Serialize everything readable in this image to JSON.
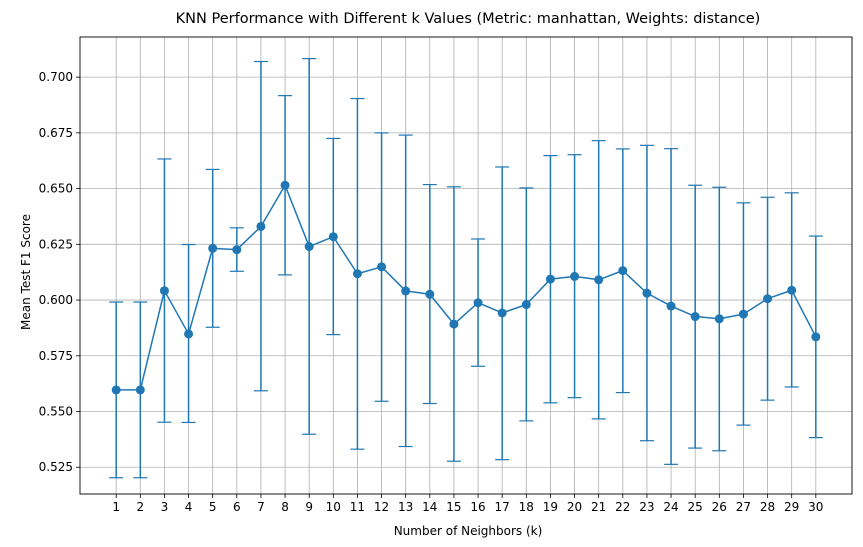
{
  "chart_data": {
    "type": "line",
    "title": "KNN Performance with Different k Values (Metric: manhattan, Weights: distance)",
    "xlabel": "Number of Neighbors (k)",
    "ylabel": "Mean Test F1 Score",
    "x": [
      1,
      2,
      3,
      4,
      5,
      6,
      7,
      8,
      9,
      10,
      11,
      12,
      13,
      14,
      15,
      16,
      17,
      18,
      19,
      20,
      21,
      22,
      23,
      24,
      25,
      26,
      27,
      28,
      29,
      30
    ],
    "x_tick_labels": [
      "1",
      "2",
      "3",
      "4",
      "5",
      "6",
      "7",
      "8",
      "9",
      "10",
      "11",
      "12",
      "13",
      "14",
      "15",
      "16",
      "17",
      "18",
      "19",
      "20",
      "21",
      "22",
      "23",
      "24",
      "25",
      "26",
      "27",
      "28",
      "29",
      "30"
    ],
    "y_ticks": [
      0.525,
      0.55,
      0.575,
      0.6,
      0.625,
      0.65,
      0.675,
      0.7
    ],
    "y_tick_labels": [
      "0.525",
      "0.550",
      "0.575",
      "0.600",
      "0.625",
      "0.650",
      "0.675",
      "0.700"
    ],
    "ylim": [
      0.513,
      0.718
    ],
    "xlim": [
      -0.5,
      31.5
    ],
    "grid": true,
    "series": [
      {
        "color": "#1f77b4",
        "marker": "circle",
        "error_bars": true,
        "values": [
          0.5597,
          0.5597,
          0.6042,
          0.5848,
          0.6232,
          0.6226,
          0.633,
          0.6515,
          0.624,
          0.6284,
          0.6118,
          0.6149,
          0.6041,
          0.6026,
          0.5892,
          0.5988,
          0.5942,
          0.598,
          0.6094,
          0.6106,
          0.6091,
          0.6132,
          0.6031,
          0.5973,
          0.5926,
          0.5916,
          0.5937,
          0.6006,
          0.6044,
          0.5835
        ],
        "lower": [
          0.5203,
          0.5203,
          0.5452,
          0.5451,
          0.5878,
          0.6129,
          0.5593,
          0.6113,
          0.5398,
          0.5845,
          0.5331,
          0.5546,
          0.5343,
          0.5536,
          0.5277,
          0.5703,
          0.5284,
          0.5458,
          0.5539,
          0.5562,
          0.5467,
          0.5585,
          0.5369,
          0.5263,
          0.5336,
          0.5324,
          0.5439,
          0.5551,
          0.561,
          0.5383
        ],
        "upper": [
          0.5991,
          0.5991,
          0.6633,
          0.6249,
          0.6586,
          0.6324,
          0.707,
          0.6917,
          0.7083,
          0.6725,
          0.6904,
          0.675,
          0.674,
          0.6518,
          0.6508,
          0.6274,
          0.6597,
          0.6503,
          0.6648,
          0.6652,
          0.6715,
          0.6678,
          0.6694,
          0.6679,
          0.6515,
          0.6506,
          0.6436,
          0.6461,
          0.6481,
          0.6287
        ]
      }
    ]
  }
}
